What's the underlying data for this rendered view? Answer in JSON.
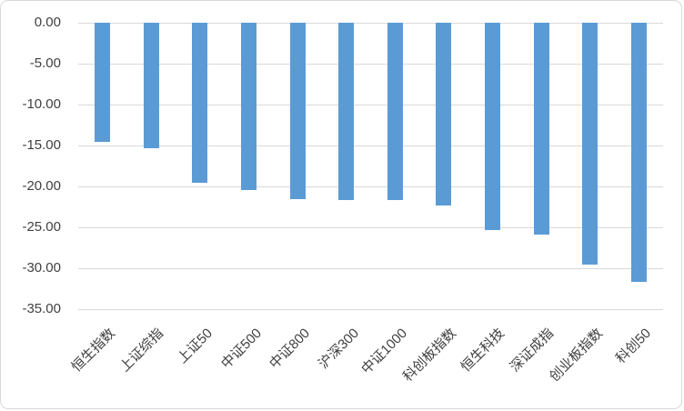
{
  "chart": {
    "background_color": "#FFFFFF",
    "border_color": "#D9D9D9",
    "bar_color": "#5B9BD5",
    "gridline_color": "#D9D9D9",
    "text_color": "#404040"
  },
  "chart_data": {
    "type": "bar",
    "orientation": "vertical",
    "categories": [
      "恒生指数",
      "上证综指",
      "上证50",
      "中证500",
      "中证800",
      "沪深300",
      "中证1000",
      "科创板指数",
      "恒生科技",
      "深证成指",
      "创业板指数",
      "科创50"
    ],
    "values": [
      -14.5,
      -15.3,
      -19.5,
      -20.4,
      -21.5,
      -21.7,
      -21.7,
      -22.3,
      -25.3,
      -25.9,
      -29.6,
      -31.7
    ],
    "y_ticks": [
      0,
      -5,
      -10,
      -15,
      -20,
      -25,
      -30,
      -35
    ],
    "y_tick_labels": [
      "0.00",
      "-5.00",
      "-10.00",
      "-15.00",
      "-20.00",
      "-25.00",
      "-30.00",
      "-35.00"
    ],
    "ylim": [
      -35,
      0
    ],
    "grid": true,
    "legend": false,
    "title": "",
    "xlabel": "",
    "ylabel": ""
  }
}
